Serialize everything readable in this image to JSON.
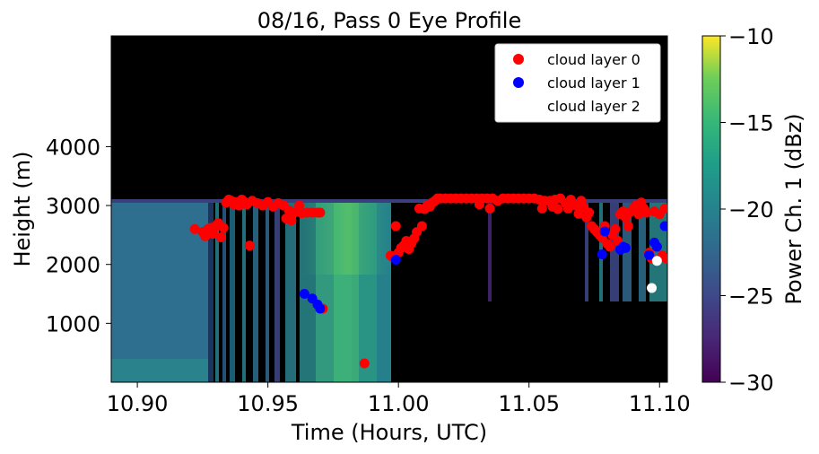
{
  "chart_data": {
    "type": "scatter",
    "title": "08/16, Pass 0 Eye Profile",
    "xlabel": "Time (Hours, UTC)",
    "ylabel": "Height (m)",
    "xlim": [
      10.89,
      11.103
    ],
    "ylim": [
      0,
      5880
    ],
    "xticks": [
      10.9,
      10.95,
      11.0,
      11.05,
      11.1
    ],
    "xtick_labels": [
      "10.90",
      "10.95",
      "11.00",
      "11.05",
      "11.10"
    ],
    "yticks": [
      1000,
      2000,
      3000,
      4000
    ],
    "ytick_labels": [
      "1000",
      "2000",
      "3000",
      "4000"
    ],
    "background": "heatmap of Power Ch. 1 (dBz), black where no return, data up to ~3100 m",
    "grid": false,
    "legend_position": "upper-right",
    "colorbar": {
      "label": "Power Ch. 1 (dBz)",
      "range": [
        -30,
        -10
      ],
      "ticks": [
        -30,
        -25,
        -20,
        -15,
        -10
      ],
      "tick_labels": [
        "−30",
        "−25",
        "−20",
        "−15",
        "−10"
      ],
      "colormap": "viridis"
    },
    "series": [
      {
        "name": "cloud layer 0",
        "color": "#ff0000",
        "points": [
          [
            10.922,
            2600
          ],
          [
            10.925,
            2550
          ],
          [
            10.927,
            2600
          ],
          [
            10.926,
            2480
          ],
          [
            10.928,
            2620
          ],
          [
            10.929,
            2520
          ],
          [
            10.93,
            2650
          ],
          [
            10.931,
            2700
          ],
          [
            10.932,
            2460
          ],
          [
            10.933,
            2620
          ],
          [
            10.934,
            3050
          ],
          [
            10.935,
            3100
          ],
          [
            10.936,
            3080
          ],
          [
            10.937,
            3020
          ],
          [
            10.938,
            3060
          ],
          [
            10.939,
            3000
          ],
          [
            10.94,
            3100
          ],
          [
            10.941,
            3060
          ],
          [
            10.942,
            3020
          ],
          [
            10.943,
            2320
          ],
          [
            10.944,
            3080
          ],
          [
            10.946,
            3040
          ],
          [
            10.948,
            3000
          ],
          [
            10.95,
            3060
          ],
          [
            10.952,
            2980
          ],
          [
            10.954,
            3040
          ],
          [
            10.956,
            3000
          ],
          [
            10.957,
            2780
          ],
          [
            10.958,
            2920
          ],
          [
            10.959,
            2750
          ],
          [
            10.96,
            2880
          ],
          [
            10.962,
            3000
          ],
          [
            10.963,
            2870
          ],
          [
            10.965,
            2880
          ],
          [
            10.967,
            2880
          ],
          [
            10.969,
            2880
          ],
          [
            10.97,
            2880
          ],
          [
            10.971,
            1250
          ],
          [
            10.987,
            320
          ],
          [
            10.997,
            2150
          ],
          [
            10.998,
            2120
          ],
          [
            10.999,
            2650
          ],
          [
            11.0,
            2200
          ],
          [
            11.001,
            2280
          ],
          [
            11.002,
            2320
          ],
          [
            11.003,
            2400
          ],
          [
            11.004,
            2260
          ],
          [
            11.005,
            2360
          ],
          [
            11.006,
            2440
          ],
          [
            11.007,
            2550
          ],
          [
            11.008,
            2950
          ],
          [
            11.009,
            2650
          ],
          [
            11.01,
            2940
          ],
          [
            11.011,
            3000
          ],
          [
            11.012,
            2980
          ],
          [
            11.013,
            3050
          ],
          [
            11.014,
            3080
          ],
          [
            11.015,
            3120
          ],
          [
            11.016,
            3120
          ],
          [
            11.018,
            3120
          ],
          [
            11.02,
            3120
          ],
          [
            11.022,
            3120
          ],
          [
            11.024,
            3120
          ],
          [
            11.026,
            3120
          ],
          [
            11.028,
            3120
          ],
          [
            11.03,
            3120
          ],
          [
            11.031,
            3020
          ],
          [
            11.032,
            3120
          ],
          [
            11.034,
            3120
          ],
          [
            11.035,
            2950
          ],
          [
            11.036,
            3120
          ],
          [
            11.038,
            3080
          ],
          [
            11.04,
            3120
          ],
          [
            11.042,
            3120
          ],
          [
            11.044,
            3120
          ],
          [
            11.046,
            3120
          ],
          [
            11.048,
            3120
          ],
          [
            11.05,
            3120
          ],
          [
            11.052,
            3120
          ],
          [
            11.054,
            3100
          ],
          [
            11.055,
            2950
          ],
          [
            11.056,
            3080
          ],
          [
            11.058,
            3080
          ],
          [
            11.059,
            2980
          ],
          [
            11.06,
            3100
          ],
          [
            11.061,
            2940
          ],
          [
            11.062,
            3120
          ],
          [
            11.064,
            3040
          ],
          [
            11.065,
            2950
          ],
          [
            11.066,
            3100
          ],
          [
            11.068,
            3000
          ],
          [
            11.069,
            2860
          ],
          [
            11.07,
            3080
          ],
          [
            11.071,
            2960
          ],
          [
            11.072,
            2800
          ],
          [
            11.073,
            2880
          ],
          [
            11.074,
            2650
          ],
          [
            11.075,
            2600
          ],
          [
            11.076,
            2550
          ],
          [
            11.077,
            2500
          ],
          [
            11.078,
            2450
          ],
          [
            11.079,
            2650
          ],
          [
            11.08,
            2350
          ],
          [
            11.081,
            2300
          ],
          [
            11.082,
            2500
          ],
          [
            11.083,
            2600
          ],
          [
            11.084,
            2400
          ],
          [
            11.085,
            2850
          ],
          [
            11.086,
            2900
          ],
          [
            11.087,
            2800
          ],
          [
            11.088,
            2650
          ],
          [
            11.089,
            2900
          ],
          [
            11.09,
            2950
          ],
          [
            11.091,
            3000
          ],
          [
            11.092,
            2850
          ],
          [
            11.093,
            3050
          ],
          [
            11.094,
            2950
          ],
          [
            11.095,
            2880
          ],
          [
            11.096,
            2200
          ],
          [
            11.097,
            2100
          ],
          [
            11.098,
            2900
          ],
          [
            11.099,
            2300
          ],
          [
            11.1,
            2850
          ],
          [
            11.101,
            2150
          ],
          [
            11.102,
            2950
          ],
          [
            11.1025,
            2100
          ]
        ]
      },
      {
        "name": "cloud layer 1",
        "color": "#0000ff",
        "points": [
          [
            10.964,
            1500
          ],
          [
            10.967,
            1420
          ],
          [
            10.969,
            1320
          ],
          [
            10.97,
            1250
          ],
          [
            10.999,
            2080
          ],
          [
            11.078,
            2170
          ],
          [
            11.079,
            2560
          ],
          [
            11.085,
            2250
          ],
          [
            11.086,
            2300
          ],
          [
            11.087,
            2280
          ],
          [
            11.096,
            2160
          ],
          [
            11.098,
            2370
          ],
          [
            11.099,
            2300
          ],
          [
            11.102,
            2650
          ]
        ]
      },
      {
        "name": "cloud layer 2",
        "color": "#ffffff",
        "points": [
          [
            11.097,
            1600
          ],
          [
            11.099,
            2060
          ]
        ]
      }
    ]
  }
}
